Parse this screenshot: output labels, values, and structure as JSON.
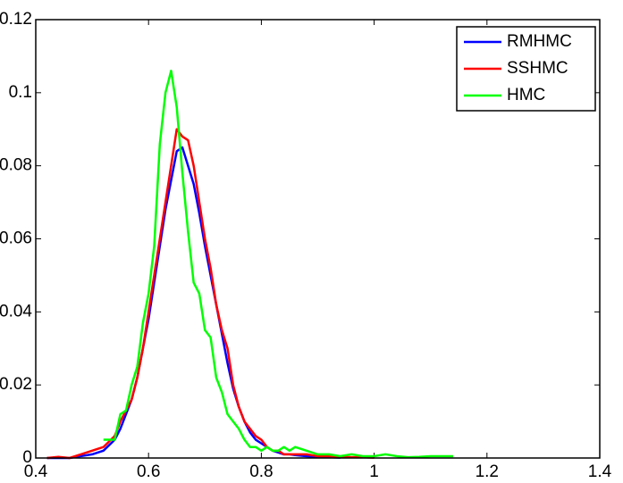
{
  "chart_data": {
    "type": "line",
    "x": [
      0.42,
      0.44,
      0.46,
      0.48,
      0.5,
      0.52,
      0.54,
      0.55,
      0.56,
      0.57,
      0.58,
      0.59,
      0.6,
      0.61,
      0.62,
      0.63,
      0.64,
      0.65,
      0.66,
      0.67,
      0.68,
      0.69,
      0.7,
      0.71,
      0.72,
      0.73,
      0.74,
      0.75,
      0.76,
      0.77,
      0.78,
      0.79,
      0.8,
      0.81,
      0.82,
      0.83,
      0.84,
      0.85,
      0.86,
      0.88,
      0.9,
      0.92,
      0.94,
      0.96,
      0.98,
      1,
      1.02,
      1.04,
      1.06,
      1.08,
      1.1,
      1.12,
      1.14
    ],
    "series": [
      {
        "name": "RMHMC",
        "color": "#0000ff",
        "values": [
          0,
          0,
          0,
          0.0005,
          0.001,
          0.002,
          0.005,
          0.008,
          0.012,
          0.016,
          0.022,
          0.03,
          0.038,
          0.048,
          0.058,
          0.068,
          0.076,
          0.084,
          0.085,
          0.08,
          0.075,
          0.067,
          0.058,
          0.05,
          0.042,
          0.034,
          0.026,
          0.019,
          0.014,
          0.01,
          0.007,
          0.005,
          0.004,
          0.003,
          0.002,
          0.0015,
          0.001,
          0.001,
          0.0008,
          0.0005,
          0.0003,
          0.0002,
          0.0001,
          null,
          null,
          null,
          null,
          null,
          null,
          null,
          null,
          null,
          null
        ]
      },
      {
        "name": "SSHMC",
        "color": "#ff0000",
        "values": [
          0,
          0.0003,
          0,
          0.001,
          0.002,
          0.003,
          0.006,
          0.01,
          0.013,
          0.016,
          0.022,
          0.03,
          0.04,
          0.05,
          0.06,
          0.07,
          0.08,
          0.09,
          0.088,
          0.087,
          0.08,
          0.07,
          0.06,
          0.052,
          0.042,
          0.035,
          0.03,
          0.02,
          0.014,
          0.01,
          0.008,
          0.006,
          0.005,
          0.003,
          0.002,
          0.002,
          0.001,
          0.001,
          0.001,
          0.001,
          0.0005,
          0.0005,
          0.0003,
          0.0002,
          0.0002,
          0.0001,
          null,
          null,
          null,
          null,
          null,
          null,
          null
        ]
      },
      {
        "name": "HMC",
        "color": "#00ff00",
        "values": [
          null,
          null,
          null,
          null,
          null,
          0.005,
          0.005,
          0.012,
          0.013,
          0.02,
          0.025,
          0.037,
          0.045,
          0.058,
          0.086,
          0.1,
          0.106,
          0.096,
          0.078,
          0.062,
          0.048,
          0.045,
          0.035,
          0.033,
          0.022,
          0.018,
          0.012,
          0.01,
          0.008,
          0.005,
          0.003,
          0.003,
          0.002,
          0.003,
          0.002,
          0.002,
          0.003,
          0.002,
          0.003,
          0.002,
          0.001,
          0.001,
          0.0005,
          0.001,
          0.0005,
          0.0005,
          0.001,
          0.0005,
          0.0002,
          0.0003,
          0.0005,
          0.0005,
          0.0005
        ]
      }
    ],
    "xlim": [
      0.4,
      1.4
    ],
    "xticks": [
      0.4,
      0.6,
      0.8,
      1,
      1.2,
      1.4
    ],
    "ylim": [
      0,
      0.12
    ],
    "yticks": [
      0,
      0.02,
      0.04,
      0.06,
      0.08,
      0.1,
      0.12
    ],
    "legend": "upper right"
  }
}
